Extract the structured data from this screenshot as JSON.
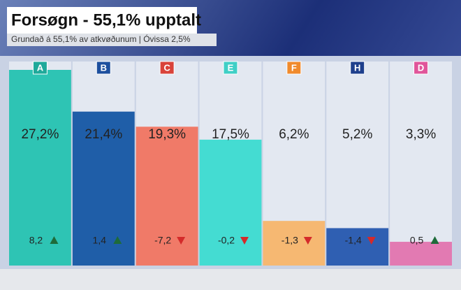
{
  "chart_data": {
    "type": "bar",
    "title": "Forsøgn - 55,1% upptalt",
    "subtitle": "Grundað á 55,1% av atkvøðunum | Óvissa 2,5%",
    "categories": [
      "A",
      "B",
      "C",
      "E",
      "F",
      "H",
      "D"
    ],
    "values": [
      27.2,
      21.4,
      19.3,
      17.5,
      6.2,
      5.2,
      3.3
    ],
    "value_labels": [
      "27,2%",
      "21,4%",
      "19,3%",
      "17,5%",
      "6,2%",
      "5,2%",
      "3,3%"
    ],
    "colors": [
      "#2ec4b4",
      "#1f5ea8",
      "#f07a68",
      "#44dcd2",
      "#f6b872",
      "#2f5fb2",
      "#e27ab2"
    ],
    "badge_colors": [
      "#1fa99a",
      "#1d4f9e",
      "#d9433a",
      "#3fcfc6",
      "#f08a2c",
      "#1e3f8c",
      "#e0559a"
    ],
    "changes": {
      "values": [
        8.2,
        1.4,
        -7.2,
        -0.2,
        -1.3,
        -1.4,
        0.5
      ],
      "value_labels": [
        "8,2",
        "1,4",
        "-7,2",
        "-0,2",
        "-1,3",
        "-1,4",
        "0,5"
      ]
    }
  }
}
